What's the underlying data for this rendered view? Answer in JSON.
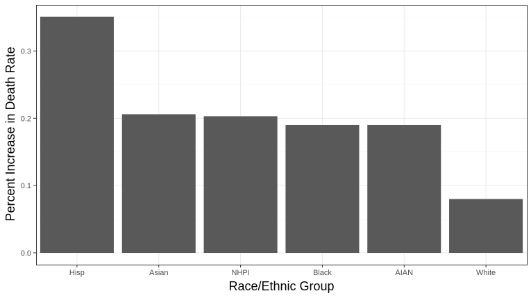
{
  "chart_data": {
    "type": "bar",
    "title": "",
    "xlabel": "Race/Ethnic Group",
    "ylabel": "Percent Increase in Death Rate",
    "categories": [
      "Hisp",
      "Asian",
      "NHPI",
      "Black",
      "AIAN",
      "White"
    ],
    "values": [
      0.351,
      0.206,
      0.203,
      0.19,
      0.19,
      0.08
    ],
    "ylim": [
      0,
      0.366
    ],
    "yticks": [
      0.0,
      0.1,
      0.2,
      0.3
    ],
    "ytick_labels": [
      "0.0",
      "0.1",
      "0.2",
      "0.3"
    ],
    "grid": true,
    "legend": "none",
    "colors": {
      "bar": "#595959",
      "panel_border": "#333333",
      "grid_major": "#ebebeb",
      "grid_minor": "#f5f5f5",
      "text": "#4d4d4d"
    }
  }
}
